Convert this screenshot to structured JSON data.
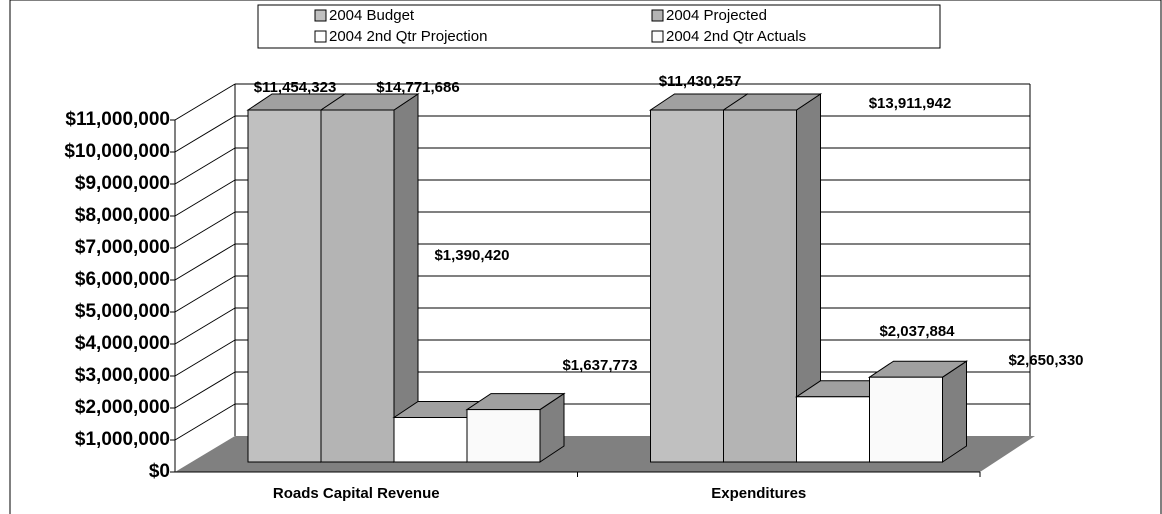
{
  "chart_data": {
    "type": "bar",
    "categories": [
      "Roads Capital Revenue",
      "Expenditures"
    ],
    "series": [
      {
        "name": "2004 Budget",
        "color": "#c0c0c0",
        "values": [
          11454323,
          14771686
        ],
        "value_labels": [
          "$11,454,323",
          "$14,771,686"
        ]
      },
      {
        "name": "2004 Projected",
        "color": "#b4b4b4",
        "values": [
          11430257,
          13911942
        ],
        "value_labels": [
          "$11,430,257",
          "$13,911,942"
        ]
      },
      {
        "name": "2004 2nd Qtr Projection",
        "color": "#ffffff",
        "values": [
          1390420,
          2037884
        ],
        "value_labels": [
          "$1,390,420",
          "$2,037,884"
        ]
      },
      {
        "name": "2004 2nd Qtr Actuals",
        "color": "#fafafa",
        "values": [
          1637773,
          2650330
        ],
        "value_labels": [
          "$1,637,773",
          "$2,650,330"
        ]
      }
    ],
    "ylim": [
      0,
      11000000
    ],
    "yticks": [
      {
        "value": 0,
        "label": "$0"
      },
      {
        "value": 1000000,
        "label": "$1,000,000"
      },
      {
        "value": 2000000,
        "label": "$2,000,000"
      },
      {
        "value": 3000000,
        "label": "$3,000,000"
      },
      {
        "value": 4000000,
        "label": "$4,000,000"
      },
      {
        "value": 5000000,
        "label": "$5,000,000"
      },
      {
        "value": 6000000,
        "label": "$6,000,000"
      },
      {
        "value": 7000000,
        "label": "$7,000,000"
      },
      {
        "value": 8000000,
        "label": "$8,000,000"
      },
      {
        "value": 9000000,
        "label": "$9,000,000"
      },
      {
        "value": 10000000,
        "label": "$10,000,000"
      },
      {
        "value": 11000000,
        "label": "$11,000,000"
      }
    ],
    "grid": true
  }
}
